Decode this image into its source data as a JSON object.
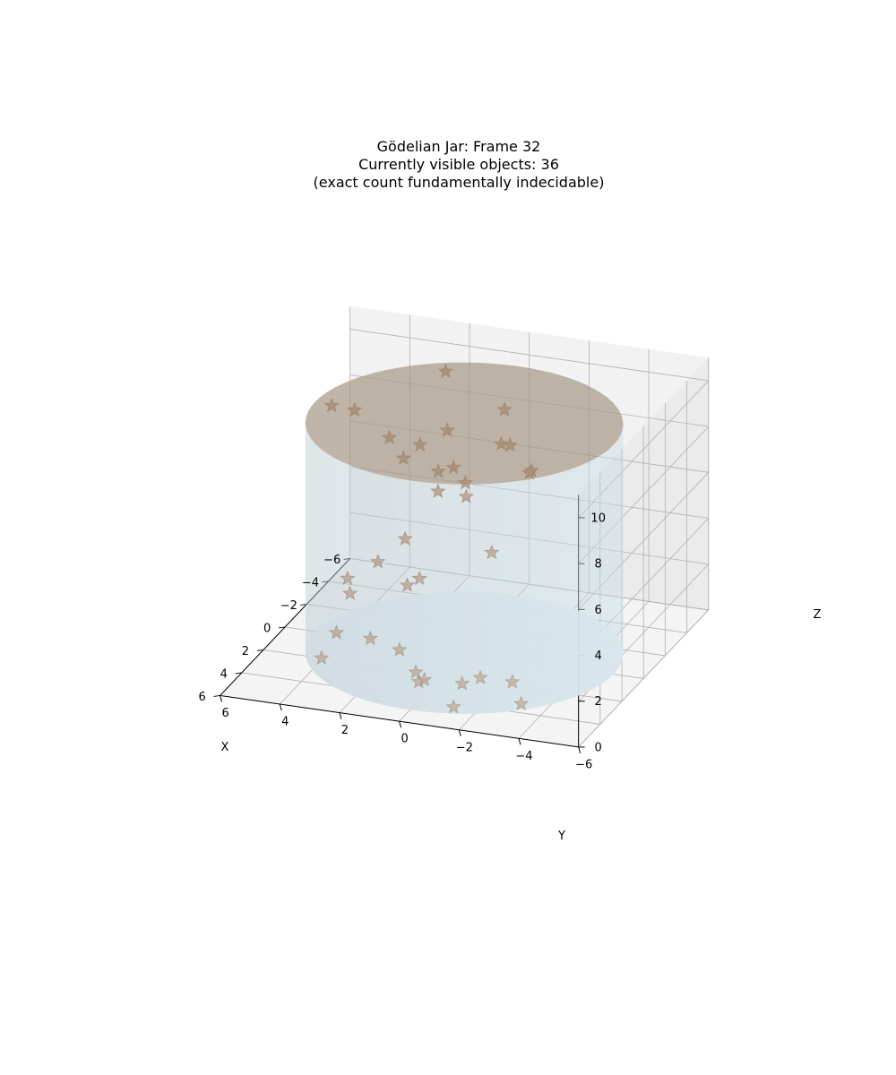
{
  "chart_data": {
    "type": "scatter",
    "projection": "3d",
    "title_lines": [
      "Gödelian Jar: Frame 32",
      "Currently visible objects: 36",
      "(exact count fundamentally indecidable)"
    ],
    "xlabel": "X",
    "ylabel": "Y",
    "zlabel": "Z",
    "xlim": [
      -6,
      6
    ],
    "ylim": [
      -6,
      6
    ],
    "zlim": [
      0,
      11
    ],
    "x_ticks": [
      "6",
      "4",
      "2",
      "0",
      "−2",
      "−4",
      "−6"
    ],
    "y_ticks": [
      "6",
      "4",
      "2",
      "0",
      "−2",
      "−4",
      "−6"
    ],
    "z_ticks": [
      "0",
      "2",
      "4",
      "6",
      "8",
      "10"
    ],
    "grid": true,
    "marker": "star",
    "colors": {
      "jar_side": "#c9dde6",
      "jar_bottom": "#e6eef2",
      "jar_lid": "#a89888",
      "star_fill": "#b07a4e",
      "star_edge": "#8a5530",
      "pane": "#f2f2f2",
      "grid": "#b0b0b0"
    },
    "jar": {
      "radius": 5,
      "z_bottom": 0,
      "z_top": 10
    },
    "points": [
      {
        "x": -3.8,
        "y": 2.0,
        "z": 10.0
      },
      {
        "x": -1.5,
        "y": -0.8,
        "z": 10.0
      },
      {
        "x": 0.1,
        "y": 4.4,
        "z": 10.0
      },
      {
        "x": 0.2,
        "y": 3.6,
        "z": 10.0
      },
      {
        "x": 0.2,
        "y": 0.5,
        "z": 9.7
      },
      {
        "x": 1.4,
        "y": 2.0,
        "z": 9.7
      },
      {
        "x": 1.0,
        "y": -1.6,
        "z": 9.9
      },
      {
        "x": 1.0,
        "y": -1.9,
        "z": 9.9
      },
      {
        "x": 2.9,
        "y": -3.3,
        "z": 10.0
      },
      {
        "x": 3.1,
        "y": -3.3,
        "z": 10.0
      },
      {
        "x": 1.6,
        "y": 0.9,
        "z": 9.7
      },
      {
        "x": 2.3,
        "y": 1.2,
        "z": 9.4
      },
      {
        "x": 2.1,
        "y": -0.4,
        "z": 9.2
      },
      {
        "x": 2.4,
        "y": 0.0,
        "z": 9.1
      },
      {
        "x": 2.1,
        "y": -0.8,
        "z": 8.6
      },
      {
        "x": 2.7,
        "y": -0.1,
        "z": 8.4
      },
      {
        "x": 1.2,
        "y": -0.5,
        "z": 7.5
      },
      {
        "x": 1.6,
        "y": 1.4,
        "z": 5.5
      },
      {
        "x": 1.9,
        "y": 2.2,
        "z": 4.5
      },
      {
        "x": 1.4,
        "y": 3.4,
        "z": 3.3
      },
      {
        "x": 2.0,
        "y": 3.1,
        "z": 3.0
      },
      {
        "x": 2.5,
        "y": 1.0,
        "z": 4.0
      },
      {
        "x": 2.2,
        "y": 0.7,
        "z": 4.2
      },
      {
        "x": -0.6,
        "y": -0.7,
        "z": 4.2
      },
      {
        "x": 2.6,
        "y": 2.2,
        "z": 1.5
      },
      {
        "x": 2.7,
        "y": 3.3,
        "z": 1.6
      },
      {
        "x": 2.7,
        "y": 3.8,
        "z": 0.4
      },
      {
        "x": 3.5,
        "y": 0.9,
        "z": 1.7
      },
      {
        "x": 3.1,
        "y": 0.5,
        "z": 0.6
      },
      {
        "x": 3.1,
        "y": 0.4,
        "z": 0.2
      },
      {
        "x": 3.4,
        "y": 0.1,
        "z": 0.5
      },
      {
        "x": 2.4,
        "y": -0.8,
        "z": 0.0
      },
      {
        "x": 2.1,
        "y": -1.3,
        "z": 0.2
      },
      {
        "x": 1.9,
        "y": -2.3,
        "z": 0.1
      },
      {
        "x": 4.3,
        "y": -1.2,
        "z": 0.0
      },
      {
        "x": 3.3,
        "y": -3.1,
        "z": 0.0
      }
    ]
  }
}
